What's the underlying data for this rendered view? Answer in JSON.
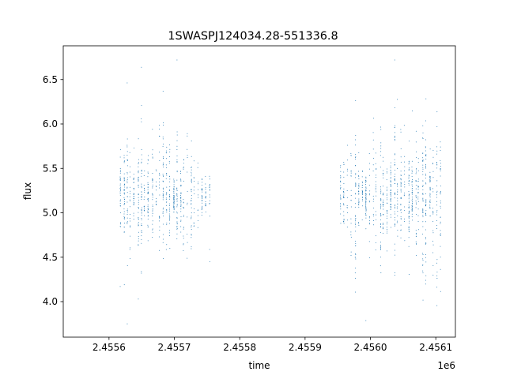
{
  "chart_data": {
    "type": "scatter",
    "title": "1SWASPJ124034.28-551336.8",
    "xlabel": "time",
    "ylabel": "flux",
    "x_offset_label": "1e6",
    "xlim": [
      2.45553,
      2.45613
    ],
    "ylim": [
      3.6,
      6.88
    ],
    "x_ticks": [
      2.4556,
      2.4557,
      2.4558,
      2.4559,
      2.456,
      2.4561
    ],
    "x_tick_labels": [
      "2.4556",
      "2.4557",
      "2.4558",
      "2.4559",
      "2.4560",
      "2.4561"
    ],
    "y_ticks": [
      4.0,
      4.5,
      5.0,
      5.5,
      6.0,
      6.5
    ],
    "y_tick_labels": [
      "4.0",
      "4.5",
      "5.0",
      "5.5",
      "6.0",
      "6.5"
    ],
    "grid": false,
    "marker_color": "#1f77b4",
    "series": [
      {
        "segments": [
          {
            "x_start": 2.455617,
            "x_end": 2.455753,
            "flux_center": 5.2,
            "flux_spread": 0.32
          },
          {
            "x_start": 2.455955,
            "x_end": 2.456107,
            "flux_center": 5.2,
            "flux_spread": 0.36
          }
        ],
        "extremes": {
          "max_flux": 6.72,
          "min_flux": 3.75
        }
      }
    ]
  }
}
